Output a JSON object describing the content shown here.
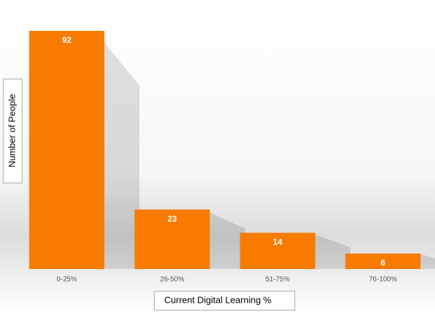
{
  "chart_data": {
    "type": "bar",
    "categories": [
      "0-25%",
      "26-50%",
      "51-75%",
      "76-100%"
    ],
    "values": [
      92,
      23,
      14,
      6
    ],
    "color": "#f97a00",
    "ylim": [
      0,
      92
    ],
    "xlabel": "Current Digital Learning %",
    "ylabel": "Number of People"
  }
}
